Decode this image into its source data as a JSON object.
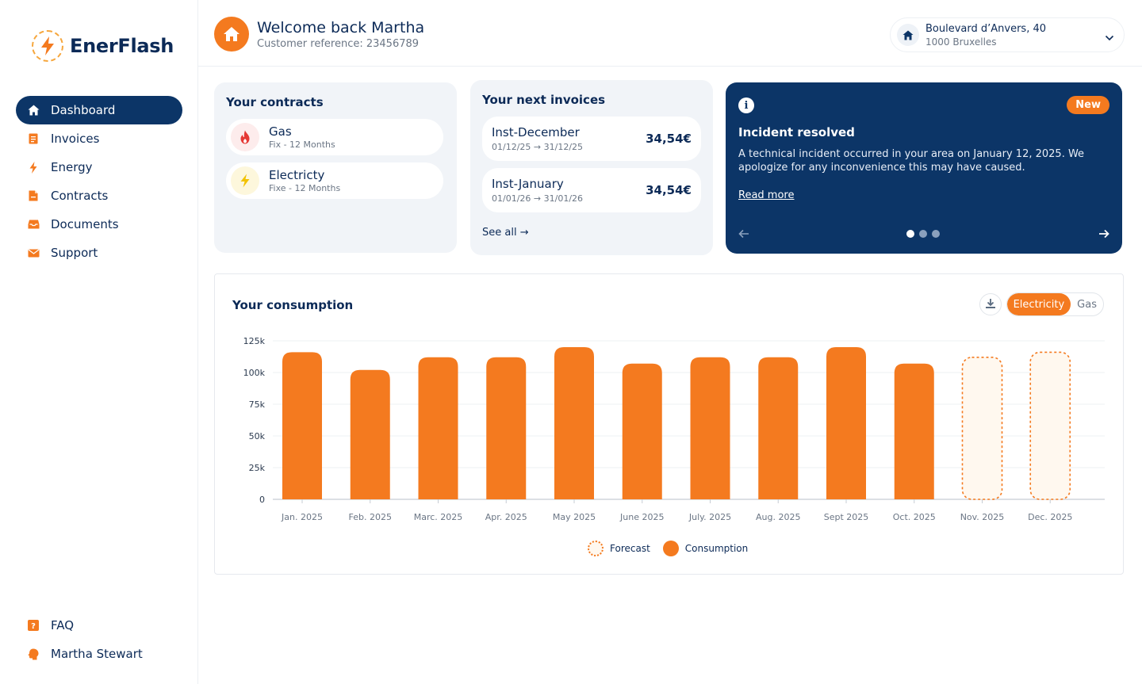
{
  "brand": {
    "name": "EnerFlash"
  },
  "sidebar": {
    "items": [
      {
        "label": "Dashboard",
        "icon": "home-icon",
        "active": true
      },
      {
        "label": "Invoices",
        "icon": "receipt-icon"
      },
      {
        "label": "Energy",
        "icon": "lightning-icon"
      },
      {
        "label": "Contracts",
        "icon": "document-icon"
      },
      {
        "label": "Documents",
        "icon": "inbox-icon"
      },
      {
        "label": "Support",
        "icon": "mail-icon"
      }
    ],
    "bottom": [
      {
        "label": "FAQ",
        "icon": "question-icon"
      },
      {
        "label": "Martha Stewart",
        "icon": "user-head-icon"
      }
    ]
  },
  "header": {
    "title": "Welcome back Martha",
    "subtitle": "Customer reference: 23456789",
    "address_line1": "Boulevard d’Anvers, 40",
    "address_line2": "1000 Bruxelles"
  },
  "contracts": {
    "title": "Your contracts",
    "items": [
      {
        "name": "Gas",
        "detail": "Fix - 12 Months",
        "icon": "flame-icon"
      },
      {
        "name": "Electricty",
        "detail": "Fixe - 12 Months",
        "icon": "lightning-icon"
      }
    ]
  },
  "invoices": {
    "title": "Your next invoices",
    "items": [
      {
        "name": "Inst-December",
        "dates": "01/12/25 → 31/12/25",
        "amount": "34,54€"
      },
      {
        "name": "Inst-January",
        "dates": "01/01/26 → 31/01/26",
        "amount": "34,54€"
      }
    ],
    "see_all": "See all →"
  },
  "incident": {
    "badge": "New",
    "title": "Incident resolved",
    "body": "A technical incident occurred in your area on January 12, 2025. We apologize for any inconvenience this may have caused.",
    "link": "Read more",
    "current_slide": 1,
    "slides": 3
  },
  "consumption": {
    "title": "Your consumption",
    "toggle": {
      "active": "Electricity",
      "inactive": "Gas"
    },
    "legend": {
      "forecast": "Forecast",
      "consumption": "Consumption"
    }
  },
  "colors": {
    "accent": "#f47a1f",
    "navy": "#0c3567",
    "forecast_fill": "#fff8ef"
  },
  "chart_data": {
    "type": "bar",
    "title": "Your consumption",
    "categories": [
      "Jan. 2025",
      "Feb. 2025",
      "Marc. 2025",
      "Apr. 2025",
      "May 2025",
      "June 2025",
      "July. 2025",
      "Aug. 2025",
      "Sept 2025",
      "Oct. 2025",
      "Nov. 2025",
      "Dec. 2025"
    ],
    "series": [
      {
        "name": "Consumption",
        "values": [
          116000,
          102000,
          112000,
          112000,
          120000,
          107000,
          112000,
          112000,
          120000,
          107000,
          null,
          null
        ]
      },
      {
        "name": "Forecast",
        "values": [
          null,
          null,
          null,
          null,
          null,
          null,
          null,
          null,
          null,
          null,
          112000,
          116000
        ]
      }
    ],
    "yticks": [
      0,
      25000,
      50000,
      75000,
      100000,
      125000
    ],
    "ytick_labels": [
      "0",
      "25k",
      "50k",
      "75k",
      "100k",
      "125k"
    ],
    "ylim": [
      0,
      125000
    ],
    "xlabel": "",
    "ylabel": "",
    "legend": [
      "Forecast",
      "Consumption"
    ]
  }
}
